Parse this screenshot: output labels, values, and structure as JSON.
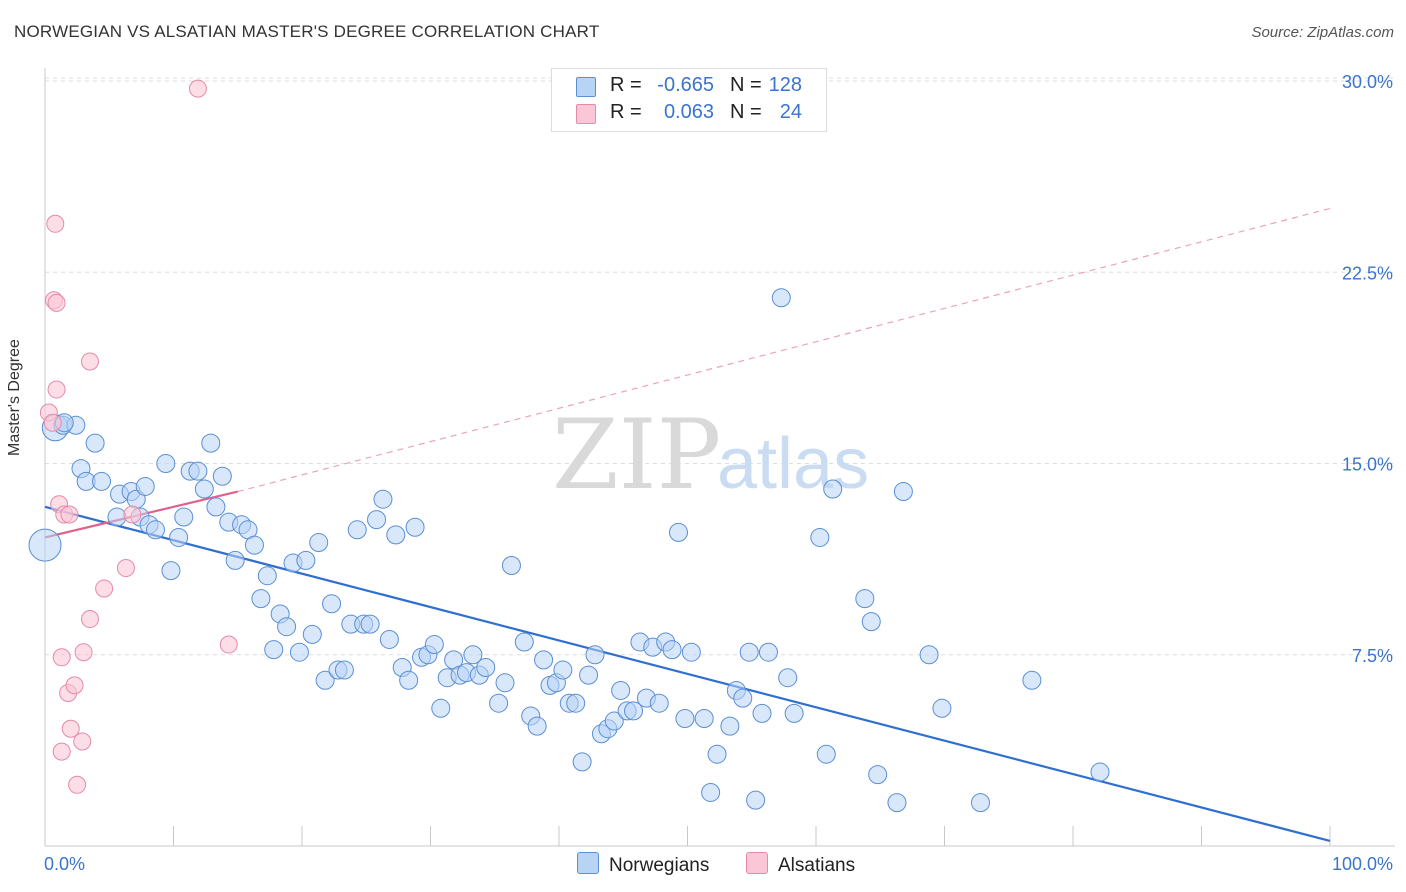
{
  "title": "NORWEGIAN VS ALSATIAN MASTER'S DEGREE CORRELATION CHART",
  "source": "Source: ZipAtlas.com",
  "watermark": {
    "zip": "ZIP",
    "atlas": "atlas"
  },
  "stats": {
    "rows": [
      {
        "r_label": "R =",
        "r_value": "-0.665",
        "n_label": "N =",
        "n_value": "128"
      },
      {
        "r_label": "R =",
        "r_value": "0.063",
        "n_label": "N =",
        "n_value": "24"
      }
    ]
  },
  "legend": {
    "norwegians": "Norwegians",
    "alsatians": "Alsatians"
  },
  "colors": {
    "blue_fill": "#b8d4f5",
    "blue_stroke": "#5b8fd4",
    "blue_line": "#2f6fd0",
    "pink_fill": "#fbc6d6",
    "pink_stroke": "#e58aa9",
    "pink_line": "#e0618e"
  },
  "chart_data": {
    "type": "scatter",
    "title": "NORWEGIAN VS ALSATIAN MASTER'S DEGREE CORRELATION CHART",
    "xlabel": "",
    "ylabel": "Master's Degree",
    "xlim": [
      0,
      100
    ],
    "ylim": [
      0,
      31
    ],
    "x_tick_labels": [
      "0.0%",
      "100.0%"
    ],
    "y_ticks": [
      7.5,
      15.0,
      22.5,
      30.0
    ],
    "y_tick_labels": [
      "7.5%",
      "15.0%",
      "22.5%",
      "30.0%"
    ],
    "series": [
      {
        "name": "Norwegians",
        "trend": {
          "x": [
            0,
            100
          ],
          "y": [
            13.3,
            0.2
          ],
          "style": "solid"
        },
        "points": [
          [
            0.8,
            16.4,
            2
          ],
          [
            1.4,
            16.5,
            1
          ],
          [
            2.4,
            16.5,
            1
          ],
          [
            1.5,
            16.6,
            1
          ],
          [
            3.9,
            15.8,
            1
          ],
          [
            2.8,
            14.8,
            1
          ],
          [
            3.2,
            14.3,
            1
          ],
          [
            4.4,
            14.3,
            1
          ],
          [
            5.6,
            12.9,
            1
          ],
          [
            5.8,
            13.8,
            1
          ],
          [
            6.7,
            13.9,
            1
          ],
          [
            7.1,
            13.6,
            1
          ],
          [
            7.4,
            12.9,
            1
          ],
          [
            7.8,
            14.1,
            1
          ],
          [
            8.1,
            12.6,
            1
          ],
          [
            8.6,
            12.4,
            1
          ],
          [
            9.4,
            15.0,
            1
          ],
          [
            9.8,
            10.8,
            1
          ],
          [
            10.4,
            12.1,
            1
          ],
          [
            10.8,
            12.9,
            1
          ],
          [
            11.3,
            14.7,
            1
          ],
          [
            11.9,
            14.7,
            1
          ],
          [
            12.4,
            14.0,
            1
          ],
          [
            12.9,
            15.8,
            1
          ],
          [
            13.3,
            13.3,
            1
          ],
          [
            13.8,
            14.5,
            1
          ],
          [
            14.3,
            12.7,
            1
          ],
          [
            14.8,
            11.2,
            1
          ],
          [
            15.3,
            12.6,
            1
          ],
          [
            15.8,
            12.4,
            1
          ],
          [
            16.3,
            11.8,
            1
          ],
          [
            17.3,
            10.6,
            1
          ],
          [
            16.8,
            9.7,
            1
          ],
          [
            17.8,
            7.7,
            1
          ],
          [
            18.3,
            9.1,
            1
          ],
          [
            18.8,
            8.6,
            1
          ],
          [
            19.3,
            11.1,
            1
          ],
          [
            19.8,
            7.6,
            1
          ],
          [
            20.3,
            11.2,
            1
          ],
          [
            20.8,
            8.3,
            1
          ],
          [
            21.3,
            11.9,
            1
          ],
          [
            21.8,
            6.5,
            1
          ],
          [
            22.3,
            9.5,
            1
          ],
          [
            22.8,
            6.9,
            1
          ],
          [
            23.3,
            6.9,
            1
          ],
          [
            23.8,
            8.7,
            1
          ],
          [
            24.3,
            12.4,
            1
          ],
          [
            24.8,
            8.7,
            1
          ],
          [
            25.3,
            8.7,
            1
          ],
          [
            25.8,
            12.8,
            1
          ],
          [
            26.3,
            13.6,
            1
          ],
          [
            26.8,
            8.1,
            1
          ],
          [
            27.3,
            12.2,
            1
          ],
          [
            27.8,
            7.0,
            1
          ],
          [
            28.3,
            6.5,
            1
          ],
          [
            28.8,
            12.5,
            1
          ],
          [
            29.3,
            7.4,
            1
          ],
          [
            29.8,
            7.5,
            1
          ],
          [
            30.3,
            7.9,
            1
          ],
          [
            30.8,
            5.4,
            1
          ],
          [
            31.3,
            6.6,
            1
          ],
          [
            31.8,
            7.3,
            1
          ],
          [
            32.3,
            6.7,
            1
          ],
          [
            32.8,
            6.8,
            1
          ],
          [
            33.3,
            7.5,
            1
          ],
          [
            33.8,
            6.7,
            1
          ],
          [
            34.3,
            7.0,
            1
          ],
          [
            35.3,
            5.6,
            1
          ],
          [
            35.8,
            6.4,
            1
          ],
          [
            36.3,
            11.0,
            1
          ],
          [
            37.3,
            8.0,
            1
          ],
          [
            37.8,
            5.1,
            1
          ],
          [
            38.3,
            4.7,
            1
          ],
          [
            38.8,
            7.3,
            1
          ],
          [
            39.3,
            6.3,
            1
          ],
          [
            39.8,
            6.4,
            1
          ],
          [
            40.3,
            6.9,
            1
          ],
          [
            40.8,
            5.6,
            1
          ],
          [
            41.3,
            5.6,
            1
          ],
          [
            41.8,
            3.3,
            1
          ],
          [
            42.3,
            6.7,
            1
          ],
          [
            42.8,
            7.5,
            1
          ],
          [
            43.3,
            4.4,
            1
          ],
          [
            43.8,
            4.6,
            1
          ],
          [
            44.3,
            4.9,
            1
          ],
          [
            44.8,
            6.1,
            1
          ],
          [
            45.3,
            5.3,
            1
          ],
          [
            45.8,
            5.3,
            1
          ],
          [
            46.3,
            8.0,
            1
          ],
          [
            46.8,
            5.8,
            1
          ],
          [
            47.3,
            7.8,
            1
          ],
          [
            47.8,
            5.6,
            1
          ],
          [
            48.3,
            8.0,
            1
          ],
          [
            48.8,
            7.7,
            1
          ],
          [
            49.3,
            12.3,
            1
          ],
          [
            49.8,
            5.0,
            1
          ],
          [
            50.3,
            7.6,
            1
          ],
          [
            51.3,
            5.0,
            1
          ],
          [
            51.8,
            2.1,
            1
          ],
          [
            52.3,
            3.6,
            1
          ],
          [
            53.3,
            4.7,
            1
          ],
          [
            53.8,
            6.1,
            1
          ],
          [
            54.3,
            5.8,
            1
          ],
          [
            54.8,
            7.6,
            1
          ],
          [
            55.3,
            1.8,
            1
          ],
          [
            55.8,
            5.2,
            1
          ],
          [
            56.3,
            7.6,
            1
          ],
          [
            57.3,
            21.5,
            1
          ],
          [
            57.8,
            6.6,
            1
          ],
          [
            58.3,
            5.2,
            1
          ],
          [
            60.3,
            12.1,
            1
          ],
          [
            60.8,
            3.6,
            1
          ],
          [
            61.3,
            14.0,
            1
          ],
          [
            63.8,
            9.7,
            1
          ],
          [
            64.3,
            8.8,
            1
          ],
          [
            64.8,
            2.8,
            1
          ],
          [
            66.3,
            1.7,
            1
          ],
          [
            66.8,
            13.9,
            1
          ],
          [
            68.8,
            7.5,
            1
          ],
          [
            69.8,
            5.4,
            1
          ],
          [
            72.8,
            1.7,
            1
          ],
          [
            76.8,
            6.5,
            1
          ],
          [
            82.1,
            2.9,
            1
          ]
        ]
      },
      {
        "name": "Alsatians",
        "trend": {
          "x": [
            0,
            15
          ],
          "y": [
            12.1,
            13.9
          ],
          "style": "solid",
          "extension": {
            "x": [
              15,
              100
            ],
            "y": [
              13.9,
              25.0
            ],
            "style": "dashed"
          }
        },
        "points": [
          [
            0.3,
            17.0
          ],
          [
            0.6,
            16.6
          ],
          [
            0.7,
            21.4
          ],
          [
            0.9,
            21.3
          ],
          [
            0.8,
            24.4
          ],
          [
            0.9,
            17.9
          ],
          [
            3.5,
            19.0
          ],
          [
            1.1,
            13.4
          ],
          [
            1.5,
            13.0
          ],
          [
            1.9,
            13.0
          ],
          [
            1.3,
            7.4
          ],
          [
            3.0,
            7.6
          ],
          [
            1.8,
            6.0
          ],
          [
            2.3,
            6.3
          ],
          [
            3.5,
            8.9
          ],
          [
            4.6,
            10.1
          ],
          [
            6.3,
            10.9
          ],
          [
            6.8,
            13.0
          ],
          [
            2.0,
            4.6
          ],
          [
            2.9,
            4.1
          ],
          [
            1.3,
            3.7
          ],
          [
            2.5,
            2.4
          ],
          [
            14.3,
            7.9
          ],
          [
            11.9,
            29.7
          ]
        ]
      }
    ]
  }
}
